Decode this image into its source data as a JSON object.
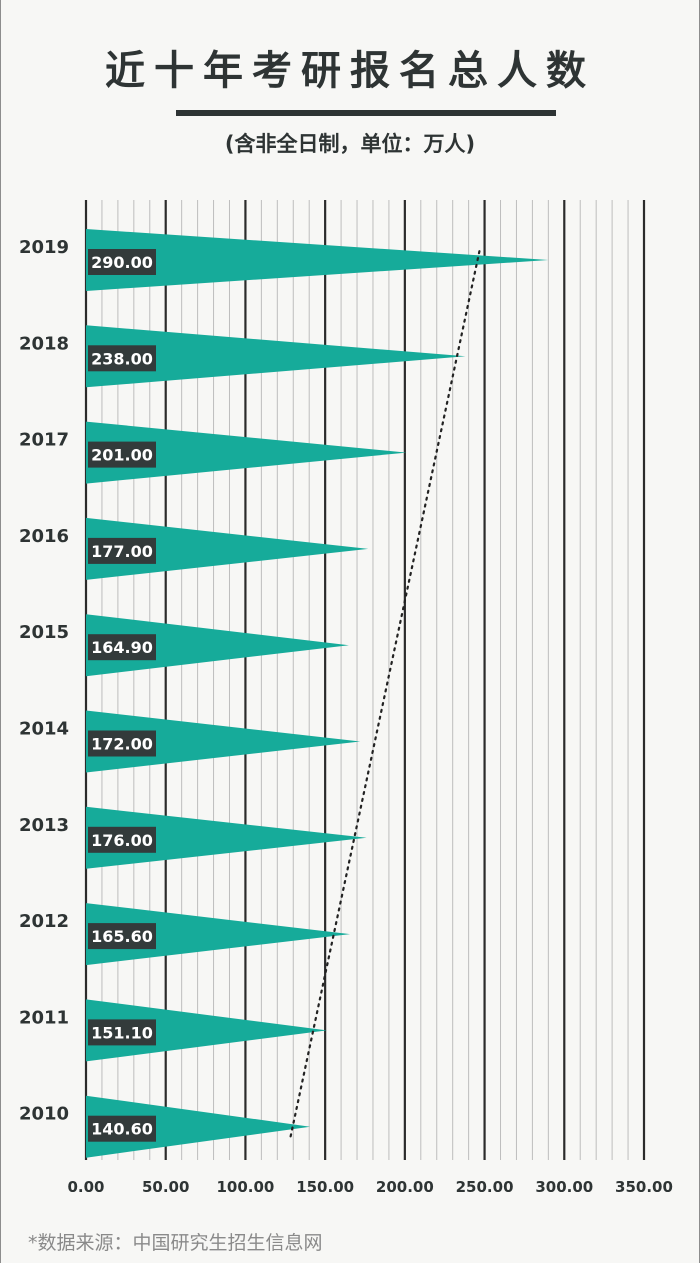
{
  "title": "近十年考研报名总人数",
  "subtitle": "(含非全日制，单位：万人)",
  "source": "*数据来源：中国研究生招生信息网",
  "colors": {
    "bar": "#16ab9a",
    "label_bg": "#333b3b",
    "label_text": "#ffffff",
    "text": "#2e3434",
    "trendline": "#222222"
  },
  "chart_data": {
    "type": "bar",
    "orientation": "horizontal",
    "categories": [
      "2019",
      "2018",
      "2017",
      "2016",
      "2015",
      "2014",
      "2013",
      "2012",
      "2011",
      "2010"
    ],
    "values": [
      290.0,
      238.0,
      201.0,
      177.0,
      164.9,
      172.0,
      176.0,
      165.6,
      151.1,
      140.6
    ],
    "value_labels": [
      "290.00",
      "238.00",
      "201.00",
      "177.00",
      "164.90",
      "172.00",
      "176.00",
      "165.60",
      "151.10",
      "140.60"
    ],
    "xlim": [
      0,
      350
    ],
    "x_ticks": [
      0,
      50,
      100,
      150,
      200,
      250,
      300,
      350
    ],
    "x_tick_labels": [
      "0.00",
      "50.00",
      "100.00",
      "150.00",
      "200.00",
      "250.00",
      "300.00",
      "350.00"
    ],
    "grid": true,
    "trendline": {
      "style": "dotted",
      "type": "linear"
    }
  }
}
